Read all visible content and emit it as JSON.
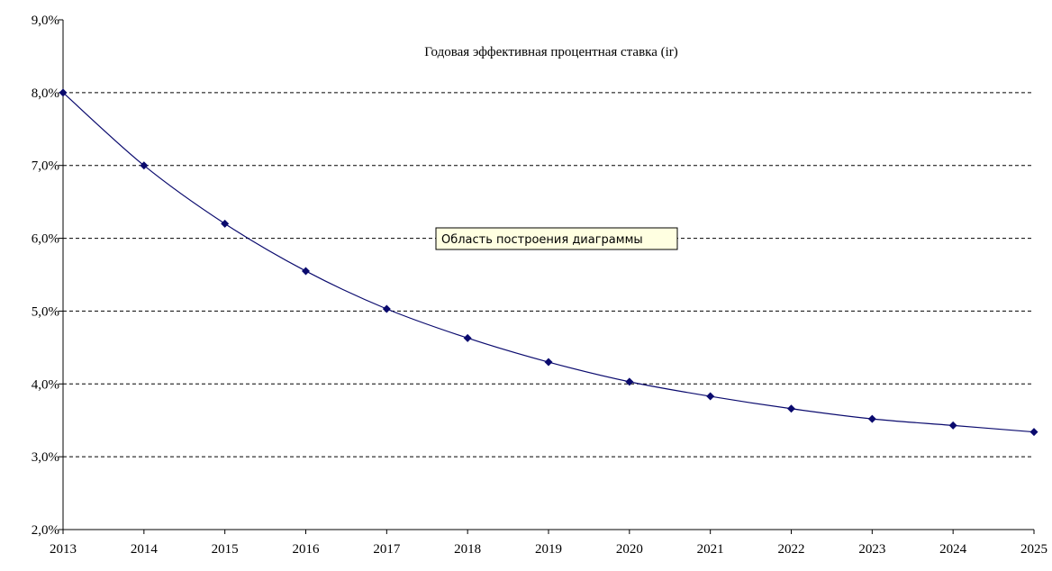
{
  "chart_data": {
    "type": "line",
    "title": "Годовая эффективная процентная ставка (ir)",
    "xlabel": "",
    "ylabel": "",
    "x": [
      "2013",
      "2014",
      "2015",
      "2016",
      "2017",
      "2018",
      "2019",
      "2020",
      "2021",
      "2022",
      "2023",
      "2024",
      "2025"
    ],
    "series": [
      {
        "values": [
          8.0,
          7.0,
          6.2,
          5.55,
          5.03,
          4.63,
          4.3,
          4.03,
          3.83,
          3.66,
          3.52,
          3.43,
          3.34
        ],
        "color": "#0a0a6e"
      }
    ],
    "ylim": [
      2.0,
      9.0
    ],
    "y_ticks": [
      "2,0%",
      "3,0%",
      "4,0%",
      "5,0%",
      "6,0%",
      "7,0%",
      "8,0%",
      "9,0%"
    ],
    "grid": "horizontal-dashed",
    "legend": "none"
  },
  "tooltip": {
    "text": "Область построения диаграммы"
  }
}
